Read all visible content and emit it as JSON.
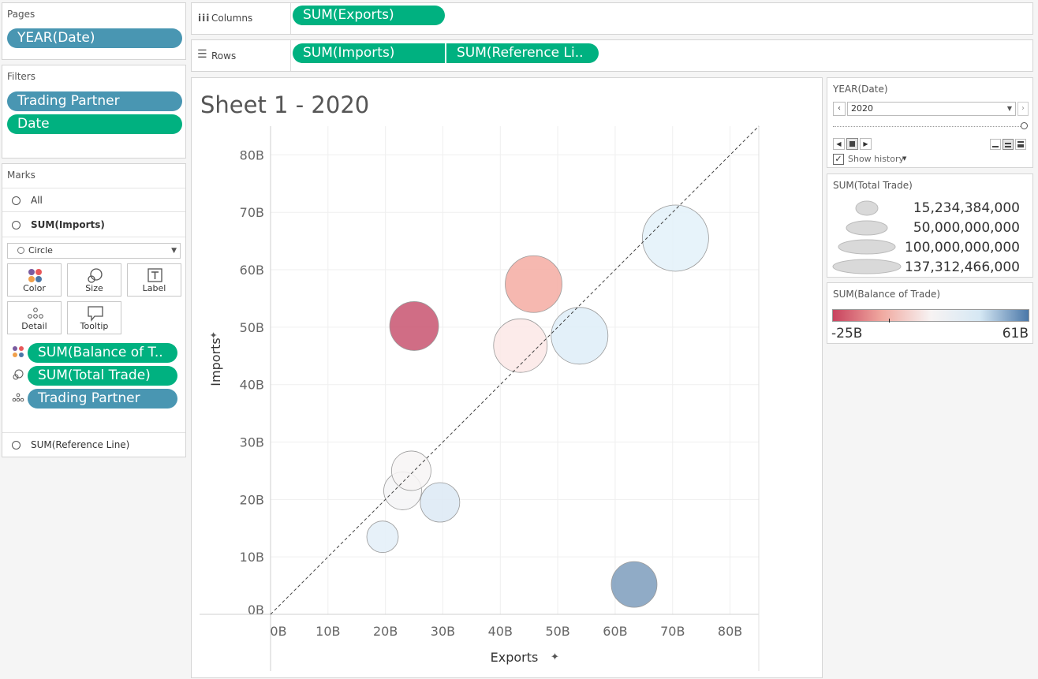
{
  "pages": {
    "title": "Pages",
    "pill": "YEAR(Date)"
  },
  "filters": {
    "title": "Filters",
    "pills": [
      "Trading Partner",
      "Date"
    ]
  },
  "marks": {
    "title": "Marks",
    "all_label": "All",
    "imports_label": "SUM(Imports)",
    "mark_type": "Circle",
    "buttons": {
      "color": "Color",
      "size": "Size",
      "label": "Label",
      "detail": "Detail",
      "tooltip": "Tooltip"
    },
    "pills": [
      "SUM(Balance of T..",
      "SUM(Total Trade)",
      "Trading Partner"
    ],
    "reference_label": "SUM(Reference Line)"
  },
  "shelves": {
    "columns_label": "Columns",
    "columns_pill": "SUM(Exports)",
    "rows_label": "Rows",
    "rows_pills": [
      "SUM(Imports)",
      "SUM(Reference Li.."
    ]
  },
  "page_control": {
    "title": "YEAR(Date)",
    "selected": "2020",
    "show_history": "Show history"
  },
  "size_legend": {
    "title": "SUM(Total Trade)",
    "entries": [
      "15,234,384,000",
      "50,000,000,000",
      "100,000,000,000",
      "137,312,466,000"
    ]
  },
  "color_legend": {
    "title": "SUM(Balance of Trade)",
    "min_label": "-25B",
    "max_label": "61B",
    "colors": [
      "#c8425e",
      "#f0a9a0",
      "#f7f3f3",
      "#d6e8f4",
      "#4a77a8"
    ]
  },
  "chart_data": {
    "type": "scatter",
    "title": "Sheet 1 - 2020",
    "xlabel": "Exports",
    "ylabel": "Imports",
    "xlim": [
      0,
      85
    ],
    "ylim": [
      0,
      85
    ],
    "xticks": [
      "0B",
      "10B",
      "20B",
      "30B",
      "40B",
      "50B",
      "60B",
      "70B",
      "80B"
    ],
    "yticks": [
      "0B",
      "10B",
      "20B",
      "30B",
      "40B",
      "50B",
      "60B",
      "70B",
      "80B"
    ],
    "reference_line": "y = x",
    "points": [
      {
        "x": 19.5,
        "y": 13.5,
        "r": 20,
        "color": "#e3eef8"
      },
      {
        "x": 23,
        "y": 21.5,
        "r": 24,
        "color": "#f4f4f6"
      },
      {
        "x": 24.5,
        "y": 25,
        "r": 25,
        "color": "#f7f4f4"
      },
      {
        "x": 29.5,
        "y": 19.5,
        "r": 25,
        "color": "#dce9f5"
      },
      {
        "x": 25,
        "y": 50.2,
        "r": 31,
        "color": "#c85470"
      },
      {
        "x": 43.5,
        "y": 46.8,
        "r": 34,
        "color": "#fbe8e6"
      },
      {
        "x": 45.8,
        "y": 57.5,
        "r": 36,
        "color": "#f5aca2"
      },
      {
        "x": 53.8,
        "y": 48.5,
        "r": 36,
        "color": "#deedf8"
      },
      {
        "x": 63.3,
        "y": 5.2,
        "r": 29,
        "color": "#7d9cbc"
      },
      {
        "x": 70.5,
        "y": 65.5,
        "r": 42,
        "color": "#e3f1f9"
      }
    ]
  }
}
